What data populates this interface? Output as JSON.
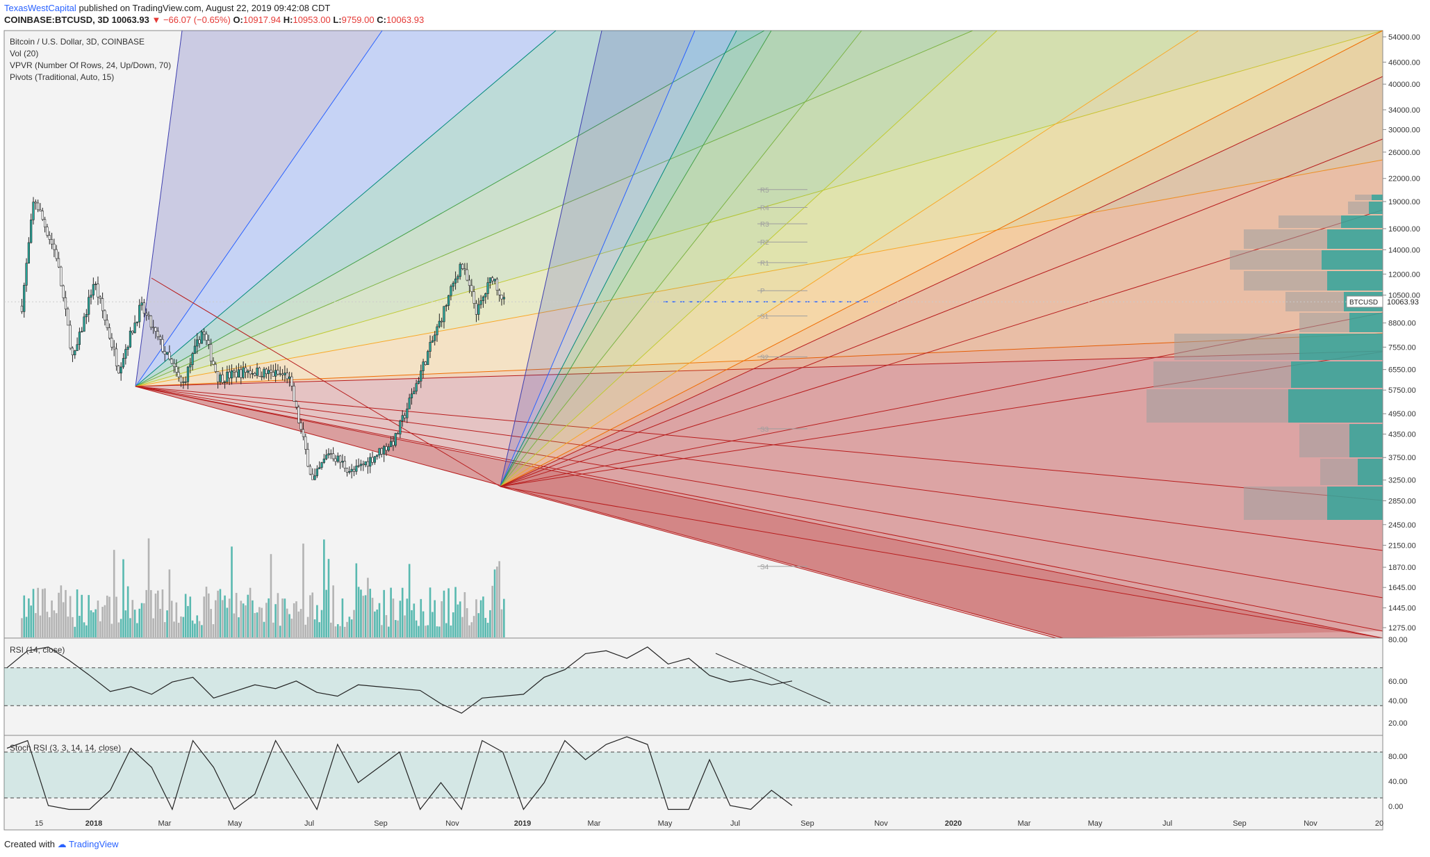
{
  "header": {
    "author": "TexasWestCapital",
    "published": "published on TradingView.com, August 22, 2019 09:42:08 CDT",
    "symbol": "COINBASE:BTCUSD, 3D",
    "last": "10063.93",
    "change": "−66.07 (−0.65%)",
    "o_label": "O:",
    "o": "10917.94",
    "h_label": "H:",
    "h": "10953.00",
    "l_label": "L:",
    "l": "9759.00",
    "c_label": "C:",
    "c": "10063.93"
  },
  "legend": {
    "title": "Bitcoin / U.S. Dollar, 3D, COINBASE",
    "vol": "Vol (20)",
    "vpvr": "VPVR (Number Of Rows, 24, Up/Down, 70)",
    "pivots": "Pivots (Traditional, Auto, 15)"
  },
  "pivot_labels": [
    "R5",
    "R4",
    "R3",
    "R2",
    "R1",
    "P",
    "S1",
    "S2",
    "S3",
    "S4"
  ],
  "price_tag": {
    "label": "BTCUSD",
    "value": "10063.93"
  },
  "rsi_panel": {
    "label": "RSI (14, close)",
    "ticks": [
      "80.00",
      "60.00",
      "40.00",
      "20.00"
    ]
  },
  "stoch_panel": {
    "label": "Stoch RSI (3, 3, 14, 14, close)",
    "ticks": [
      "80.00",
      "40.00",
      "0.00"
    ]
  },
  "footer": {
    "created": "Created with",
    "brand": "TradingView"
  },
  "colors": {
    "up": "#26a69a",
    "down": "#222222",
    "vol_up": "#26a69a",
    "vol_down": "#9e9e9e",
    "last_price": "#2962ff"
  },
  "chart_data": [
    {
      "type": "candlestick",
      "title": "Bitcoin / U.S. Dollar, 3D, COINBASE",
      "y_scale": "log",
      "y_ticks": [
        "54000.00",
        "46000.00",
        "40000.00",
        "34000.00",
        "30000.00",
        "26000.00",
        "22000.00",
        "19000.00",
        "16000.00",
        "14000.00",
        "12000.00",
        "10500.00",
        "8800.00",
        "7550.00",
        "6550.00",
        "5750.00",
        "4950.00",
        "4350.00",
        "3750.00",
        "3250.00",
        "2850.00",
        "2450.00",
        "2150.00",
        "1870.00",
        "1645.00",
        "1445.00",
        "1275.00"
      ],
      "x_ticks": [
        "15",
        "2018",
        "Mar",
        "May",
        "Jul",
        "Sep",
        "Nov",
        "2019",
        "Mar",
        "May",
        "Jul",
        "Sep",
        "Nov",
        "2020",
        "Mar",
        "May",
        "Jul",
        "Sep",
        "Nov",
        "20"
      ],
      "close_path": [
        [
          "2017-12-01",
          9800
        ],
        [
          "2017-12-17",
          19500
        ],
        [
          "2018-01-15",
          13500
        ],
        [
          "2018-02-06",
          6900
        ],
        [
          "2018-03-05",
          11500
        ],
        [
          "2018-04-06",
          6600
        ],
        [
          "2018-05-05",
          9800
        ],
        [
          "2018-06-28",
          5900
        ],
        [
          "2018-07-24",
          8400
        ],
        [
          "2018-08-14",
          6200
        ],
        [
          "2018-09-20",
          6500
        ],
        [
          "2018-11-13",
          6300
        ],
        [
          "2018-12-15",
          3200
        ],
        [
          "2019-01-05",
          3900
        ],
        [
          "2019-02-05",
          3400
        ],
        [
          "2019-04-01",
          4200
        ],
        [
          "2019-05-28",
          8700
        ],
        [
          "2019-06-26",
          12900
        ],
        [
          "2019-07-17",
          9400
        ],
        [
          "2019-08-06",
          11900
        ],
        [
          "2019-08-21",
          10063.93
        ]
      ],
      "last": 10063.93,
      "pivots": {
        "R5": 20500,
        "R4": 18300,
        "R3": 16500,
        "R2": 14700,
        "R1": 12900,
        "P": 10800,
        "S1": 9200,
        "S2": 7100,
        "S3": 4500,
        "S4": 1880
      },
      "volume_profile_rows": 24
    },
    {
      "type": "line",
      "title": "RSI (14, close)",
      "ylim": [
        0,
        100
      ],
      "bands": [
        30,
        70
      ],
      "series": [
        {
          "values": [
            70,
            88,
            92,
            78,
            62,
            45,
            50,
            42,
            55,
            60,
            38,
            45,
            52,
            48,
            56,
            44,
            40,
            52,
            50,
            48,
            46,
            32,
            22,
            38,
            40,
            42,
            60,
            68,
            85,
            88,
            80,
            92,
            74,
            80,
            62,
            55,
            58,
            52,
            56
          ]
        }
      ]
    },
    {
      "type": "line",
      "title": "Stoch RSI (3, 3, 14, 14, close)",
      "ylim": [
        0,
        100
      ],
      "bands": [
        20,
        80
      ],
      "series": [
        {
          "values": [
            85,
            95,
            10,
            5,
            5,
            30,
            85,
            60,
            5,
            95,
            60,
            5,
            25,
            95,
            50,
            5,
            90,
            40,
            60,
            80,
            5,
            40,
            5,
            95,
            80,
            5,
            40,
            95,
            70,
            90,
            100,
            90,
            5,
            5,
            70,
            10,
            5,
            30,
            10
          ]
        }
      ]
    }
  ]
}
